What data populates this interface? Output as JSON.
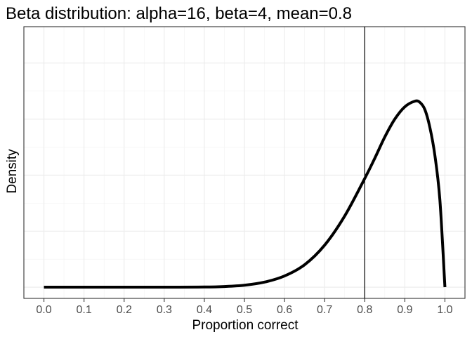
{
  "chart_data": {
    "type": "line",
    "title": "Beta distribution: alpha=16, beta=4, mean=0.8",
    "xlabel": "Proportion correct",
    "ylabel": "Density",
    "xlim": [
      -0.05,
      1.05
    ],
    "ylim": [
      -0.2,
      4.65
    ],
    "x_ticks": [
      "0.0",
      "0.1",
      "0.2",
      "0.3",
      "0.4",
      "0.5",
      "0.6",
      "0.7",
      "0.8",
      "0.9",
      "1.0"
    ],
    "y_ticks_labeled": false,
    "y_grid_major": [
      0,
      1,
      2,
      3,
      4
    ],
    "grid": true,
    "legend": "none",
    "vline": {
      "x": 0.8,
      "color": "#000000"
    },
    "series": [
      {
        "line_color": "#000000",
        "alpha": 16,
        "beta": 4,
        "points": [
          [
            0.0,
            0.0
          ],
          [
            0.3,
            0.0
          ],
          [
            0.4,
            0.003
          ],
          [
            0.45,
            0.012
          ],
          [
            0.5,
            0.035
          ],
          [
            0.55,
            0.09
          ],
          [
            0.6,
            0.2
          ],
          [
            0.65,
            0.4
          ],
          [
            0.7,
            0.75
          ],
          [
            0.75,
            1.27
          ],
          [
            0.8,
            1.94
          ],
          [
            0.825,
            2.3
          ],
          [
            0.85,
            2.68
          ],
          [
            0.875,
            3.0
          ],
          [
            0.9,
            3.22
          ],
          [
            0.925,
            3.32
          ],
          [
            0.9375,
            3.3
          ],
          [
            0.95,
            3.17
          ],
          [
            0.9625,
            2.85
          ],
          [
            0.975,
            2.35
          ],
          [
            0.9875,
            1.55
          ],
          [
            1.0,
            0.0
          ]
        ]
      }
    ]
  }
}
